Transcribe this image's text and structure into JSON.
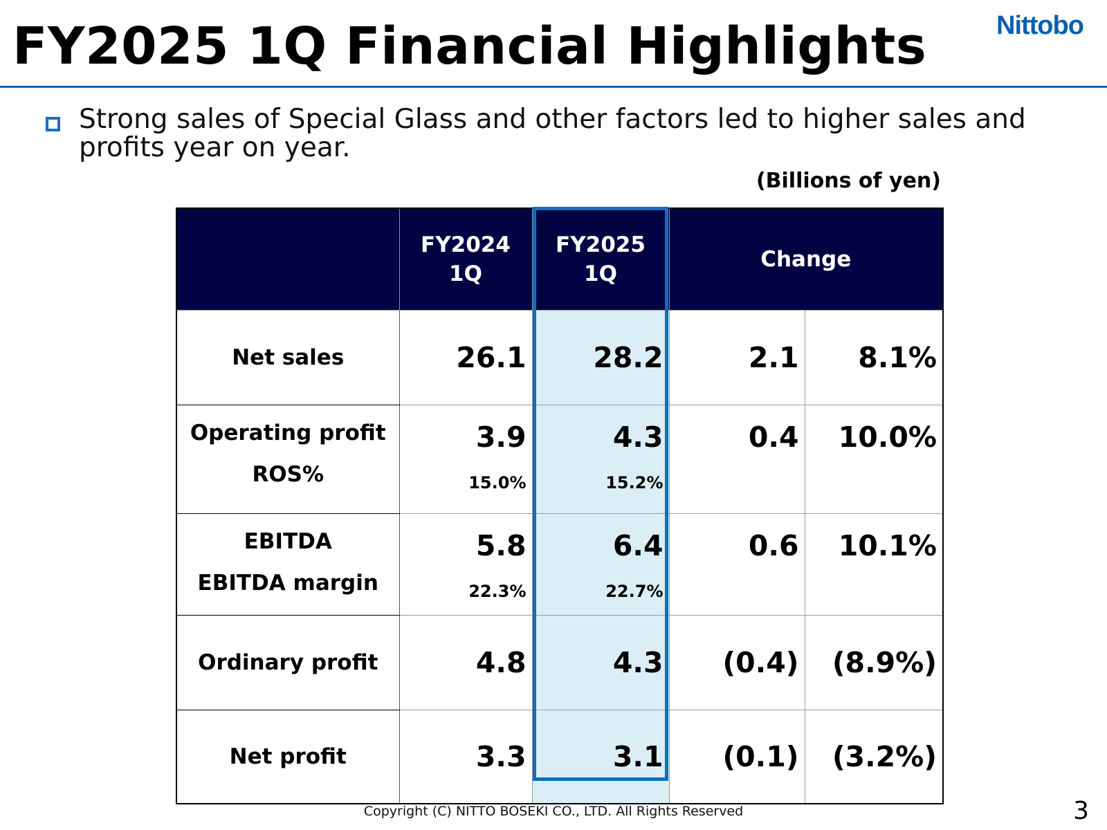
{
  "header": {
    "title": "FY2025 1Q Financial Highlights",
    "logo_text": "Nittobo"
  },
  "summary": {
    "bullet": "Strong sales of Special Glass and other factors led to higher sales and profits year on year."
  },
  "units": "(Billions of yen)",
  "table": {
    "headers": [
      "",
      "FY2024 1Q",
      "FY2025 1Q",
      "Change"
    ],
    "highlight_column": "FY2025 1Q",
    "rows": [
      {
        "label": "Net sales",
        "fy2024": "26.1",
        "fy2025": "28.2",
        "change": "2.1",
        "change_pct": "8.1%"
      },
      {
        "label": "Operating profit",
        "sub_label": "ROS%",
        "fy2024": "3.9",
        "fy2024_sub": "15.0%",
        "fy2025": "4.3",
        "fy2025_sub": "15.2%",
        "change": "0.4",
        "change_pct": "10.0%"
      },
      {
        "label": "EBITDA",
        "sub_label": "EBITDA margin",
        "fy2024": "5.8",
        "fy2024_sub": "22.3%",
        "fy2025": "6.4",
        "fy2025_sub": "22.7%",
        "change": "0.6",
        "change_pct": "10.1%"
      },
      {
        "label": "Ordinary profit",
        "fy2024": "4.8",
        "fy2025": "4.3",
        "change": "(0.4)",
        "change_pct": "(8.9%)"
      },
      {
        "label": "Net profit",
        "fy2024": "3.3",
        "fy2025": "3.1",
        "change": "(0.1)",
        "change_pct": "(3.2%)"
      }
    ]
  },
  "colors": {
    "header_bg": "#020343",
    "highlight_bg": "#dceef5",
    "highlight_border": "#0d6fbe",
    "accent": "#1863a8"
  },
  "footer": {
    "copyright": "Copyright (C)  NITTO BOSEKI CO., LTD. All Rights Reserved",
    "page_number": "3"
  }
}
